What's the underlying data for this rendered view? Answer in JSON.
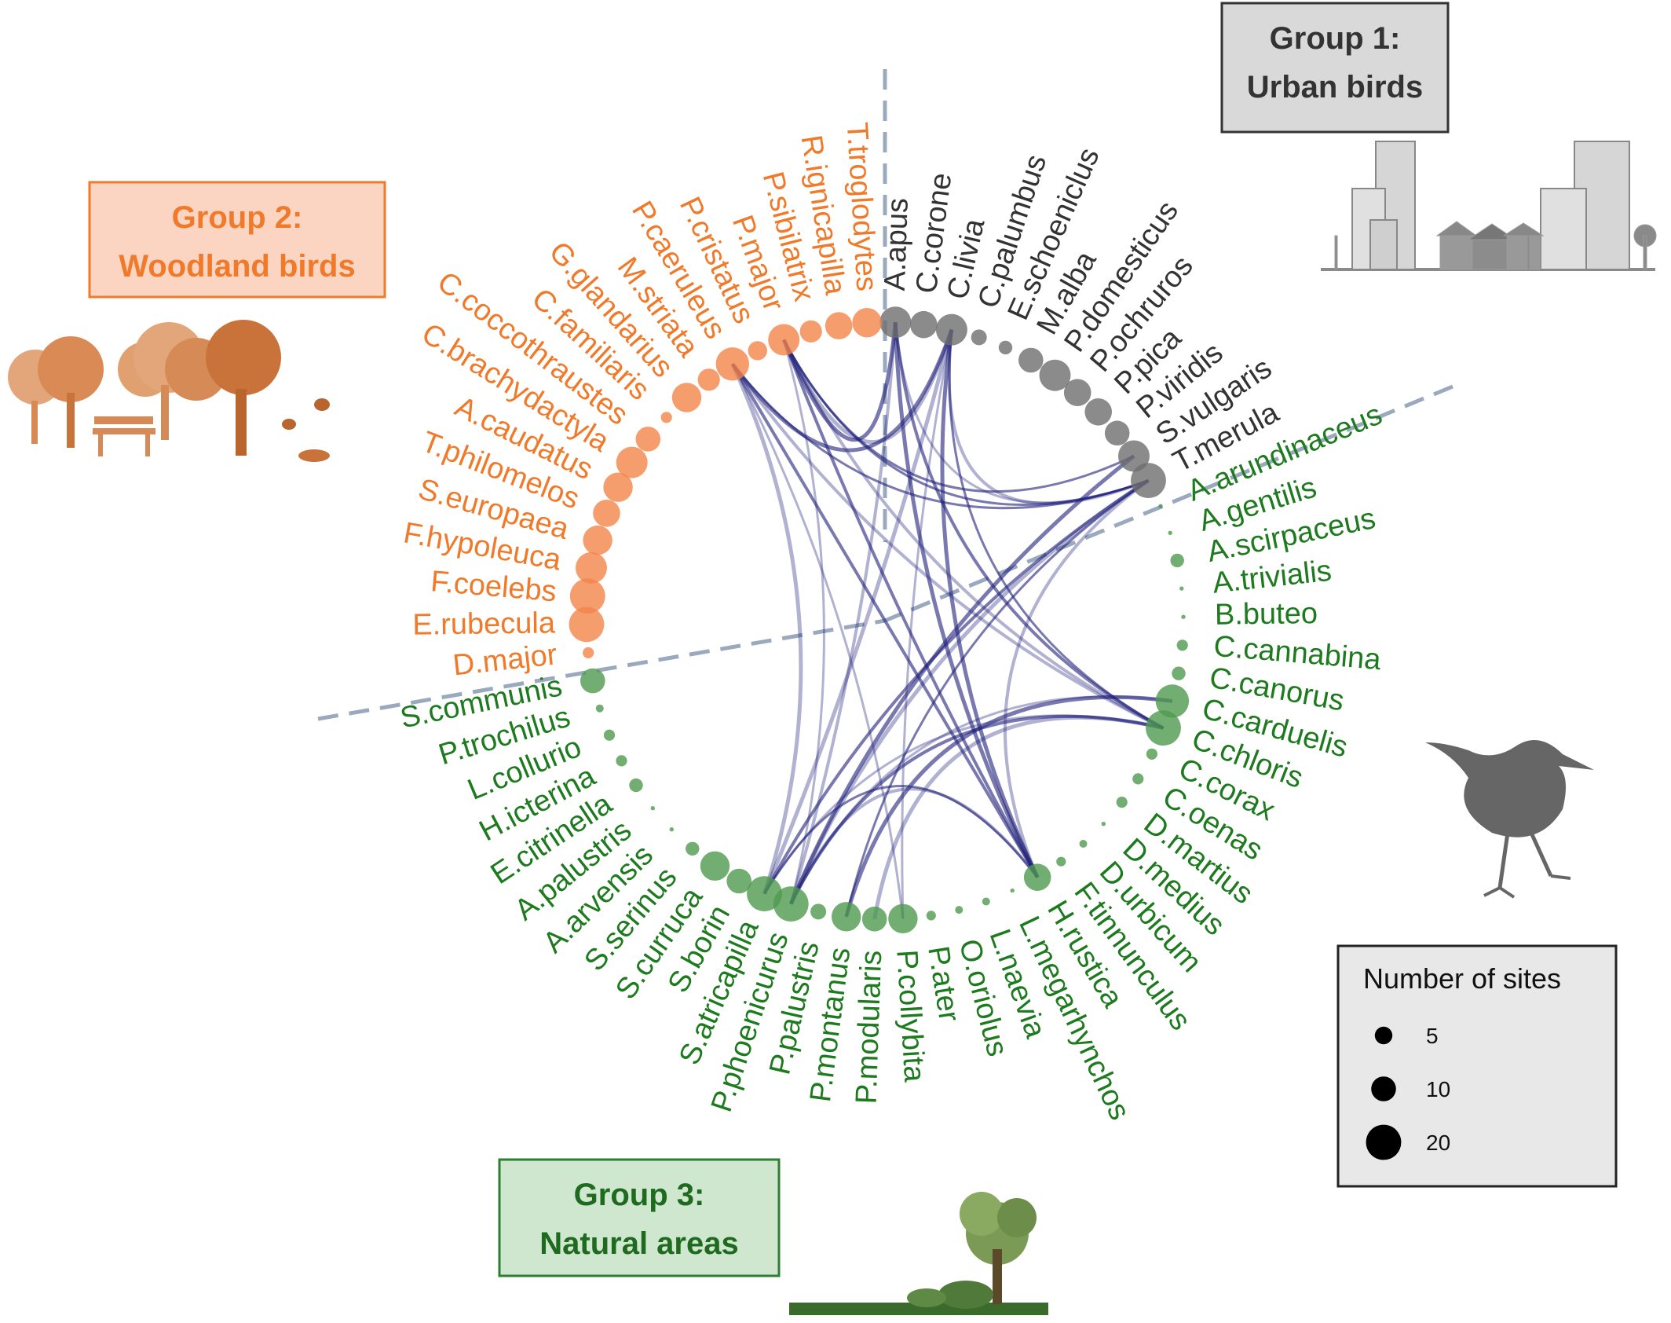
{
  "colors": {
    "urban": "#333333",
    "woodland": "#f07a2a",
    "natural": "#1e7a1e",
    "urban_node": "#6e6e6e",
    "woodland_node": "#f4844a",
    "natural_node": "#4f9a4f",
    "link": "#1f1f7a",
    "divider": "#9aa9bd",
    "urban_box": "#d9d9d9",
    "woodland_box": "#fbd5c1",
    "natural_box": "#cfe6cf",
    "woodland_box_border": "#f07a2a",
    "natural_box_border": "#2e7d32"
  },
  "groups": [
    {
      "id": "urban",
      "title_line1": "Group 1:",
      "title_line2": "Urban birds",
      "icon": "city-buildings-icon"
    },
    {
      "id": "woodland",
      "title_line1": "Group 2:",
      "title_line2": "Woodland birds",
      "icon": "trees-bench-insects-icon"
    },
    {
      "id": "natural",
      "title_line1": "Group 3:",
      "title_line2": "Natural areas",
      "icon": "tree-grass-icon"
    }
  ],
  "species": [
    {
      "name": "A.apus",
      "group": "urban",
      "sites": 16
    },
    {
      "name": "C.corone",
      "group": "urban",
      "sites": 12
    },
    {
      "name": "C.livia",
      "group": "urban",
      "sites": 16
    },
    {
      "name": "C.palumbus",
      "group": "urban",
      "sites": 4
    },
    {
      "name": "E.schoeniclus",
      "group": "urban",
      "sites": 3
    },
    {
      "name": "M.alba",
      "group": "urban",
      "sites": 10
    },
    {
      "name": "P.domesticus",
      "group": "urban",
      "sites": 16
    },
    {
      "name": "P.ochruros",
      "group": "urban",
      "sites": 12
    },
    {
      "name": "P.pica",
      "group": "urban",
      "sites": 12
    },
    {
      "name": "P.viridis",
      "group": "urban",
      "sites": 10
    },
    {
      "name": "S.vulgaris",
      "group": "urban",
      "sites": 16
    },
    {
      "name": "T.merula",
      "group": "urban",
      "sites": 20
    },
    {
      "name": "A.arundinaceus",
      "group": "natural",
      "sites": 0.3
    },
    {
      "name": "A.gentilis",
      "group": "natural",
      "sites": 0.3
    },
    {
      "name": "A.scirpaceus",
      "group": "natural",
      "sites": 3
    },
    {
      "name": "A.trivialis",
      "group": "natural",
      "sites": 0.3
    },
    {
      "name": "B.buteo",
      "group": "natural",
      "sites": 0.3
    },
    {
      "name": "C.cannabina",
      "group": "natural",
      "sites": 2
    },
    {
      "name": "C.canorus",
      "group": "natural",
      "sites": 3
    },
    {
      "name": "C.carduelis",
      "group": "natural",
      "sites": 18
    },
    {
      "name": "C.chloris",
      "group": "natural",
      "sites": 20
    },
    {
      "name": "C.corax",
      "group": "natural",
      "sites": 2
    },
    {
      "name": "C.oenas",
      "group": "natural",
      "sites": 2
    },
    {
      "name": "D.martius",
      "group": "natural",
      "sites": 2
    },
    {
      "name": "D.medius",
      "group": "natural",
      "sites": 0.3
    },
    {
      "name": "D.urbicum",
      "group": "natural",
      "sites": 1
    },
    {
      "name": "F.tinnunculus",
      "group": "natural",
      "sites": 1.5
    },
    {
      "name": "H.rustica",
      "group": "natural",
      "sites": 12
    },
    {
      "name": "L.megarhynchos",
      "group": "natural",
      "sites": 0.3
    },
    {
      "name": "L.naevia",
      "group": "natural",
      "sites": 1
    },
    {
      "name": "O.oriolus",
      "group": "natural",
      "sites": 1
    },
    {
      "name": "P.ater",
      "group": "natural",
      "sites": 1.5
    },
    {
      "name": "P.collybita",
      "group": "natural",
      "sites": 14
    },
    {
      "name": "P.modularis",
      "group": "natural",
      "sites": 10
    },
    {
      "name": "P.montanus",
      "group": "natural",
      "sites": 14
    },
    {
      "name": "P.palustris",
      "group": "natural",
      "sites": 4
    },
    {
      "name": "P.phoenicurus",
      "group": "natural",
      "sites": 20
    },
    {
      "name": "S.atricapilla",
      "group": "natural",
      "sites": 20
    },
    {
      "name": "S.borin",
      "group": "natural",
      "sites": 10
    },
    {
      "name": "S.curruca",
      "group": "natural",
      "sites": 14
    },
    {
      "name": "S.serinus",
      "group": "natural",
      "sites": 3
    },
    {
      "name": "A.arvensis",
      "group": "natural",
      "sites": 0.3
    },
    {
      "name": "A.palustris",
      "group": "natural",
      "sites": 0.3
    },
    {
      "name": "E.citrinella",
      "group": "natural",
      "sites": 3
    },
    {
      "name": "H.icterina",
      "group": "natural",
      "sites": 2
    },
    {
      "name": "L.collurio",
      "group": "natural",
      "sites": 2
    },
    {
      "name": "P.trochilus",
      "group": "natural",
      "sites": 1
    },
    {
      "name": "S.communis",
      "group": "natural",
      "sites": 10
    },
    {
      "name": "D.major",
      "group": "woodland",
      "sites": 2
    },
    {
      "name": "E.rubecula",
      "group": "woodland",
      "sites": 20
    },
    {
      "name": "F.coelebs",
      "group": "woodland",
      "sites": 20
    },
    {
      "name": "F.hypoleuca",
      "group": "woodland",
      "sites": 16
    },
    {
      "name": "S.europaea",
      "group": "woodland",
      "sites": 14
    },
    {
      "name": "T.philomelos",
      "group": "woodland",
      "sites": 12
    },
    {
      "name": "A.caudatus",
      "group": "woodland",
      "sites": 14
    },
    {
      "name": "C.brachydactyla",
      "group": "woodland",
      "sites": 16
    },
    {
      "name": "C.coccothraustes",
      "group": "woodland",
      "sites": 10
    },
    {
      "name": "C.familiaris",
      "group": "woodland",
      "sites": 2
    },
    {
      "name": "G.glandarius",
      "group": "woodland",
      "sites": 14
    },
    {
      "name": "M.striata",
      "group": "woodland",
      "sites": 8
    },
    {
      "name": "P.caeruleus",
      "group": "woodland",
      "sites": 18
    },
    {
      "name": "P.cristatus",
      "group": "woodland",
      "sites": 6
    },
    {
      "name": "P.major",
      "group": "woodland",
      "sites": 16
    },
    {
      "name": "P.sibilatrix",
      "group": "woodland",
      "sites": 8
    },
    {
      "name": "R.ignicapilla",
      "group": "woodland",
      "sites": 12
    },
    {
      "name": "T.troglodytes",
      "group": "woodland",
      "sites": 14
    }
  ],
  "links": [
    [
      "P.caeruleus",
      "T.merula"
    ],
    [
      "P.caeruleus",
      "C.chloris"
    ],
    [
      "P.caeruleus",
      "C.livia"
    ],
    [
      "P.caeruleus",
      "P.collybita"
    ],
    [
      "P.caeruleus",
      "H.rustica"
    ],
    [
      "P.caeruleus",
      "S.atricapilla"
    ],
    [
      "P.major",
      "T.merula"
    ],
    [
      "P.major",
      "C.chloris"
    ],
    [
      "P.major",
      "A.apus"
    ],
    [
      "P.major",
      "P.phoenicurus"
    ],
    [
      "P.major",
      "H.rustica"
    ],
    [
      "P.major",
      "C.livia"
    ],
    [
      "P.major",
      "S.vulgaris"
    ],
    [
      "A.apus",
      "P.phoenicurus"
    ],
    [
      "A.apus",
      "H.rustica"
    ],
    [
      "A.apus",
      "T.merula"
    ],
    [
      "A.apus",
      "C.chloris"
    ],
    [
      "C.livia",
      "S.atricapilla"
    ],
    [
      "C.livia",
      "C.chloris"
    ],
    [
      "C.livia",
      "T.merula"
    ],
    [
      "C.livia",
      "H.rustica"
    ],
    [
      "C.livia",
      "P.collybita"
    ],
    [
      "T.merula",
      "S.atricapilla"
    ],
    [
      "T.merula",
      "P.phoenicurus"
    ],
    [
      "T.merula",
      "P.montanus"
    ],
    [
      "T.merula",
      "H.rustica"
    ],
    [
      "S.vulgaris",
      "P.phoenicurus"
    ],
    [
      "C.chloris",
      "S.atricapilla"
    ],
    [
      "C.chloris",
      "P.phoenicurus"
    ],
    [
      "C.chloris",
      "P.modularis"
    ],
    [
      "H.rustica",
      "S.atricapilla"
    ],
    [
      "H.rustica",
      "P.phoenicurus"
    ],
    [
      "C.carduelis",
      "P.montanus"
    ],
    [
      "C.carduelis",
      "P.phoenicurus"
    ]
  ],
  "legend": {
    "title": "Number of sites",
    "items": [
      {
        "label": "5",
        "value": 5
      },
      {
        "label": "10",
        "value": 10
      },
      {
        "label": "20",
        "value": 20
      }
    ]
  },
  "decorations": [
    "bird-silhouette-icon"
  ]
}
